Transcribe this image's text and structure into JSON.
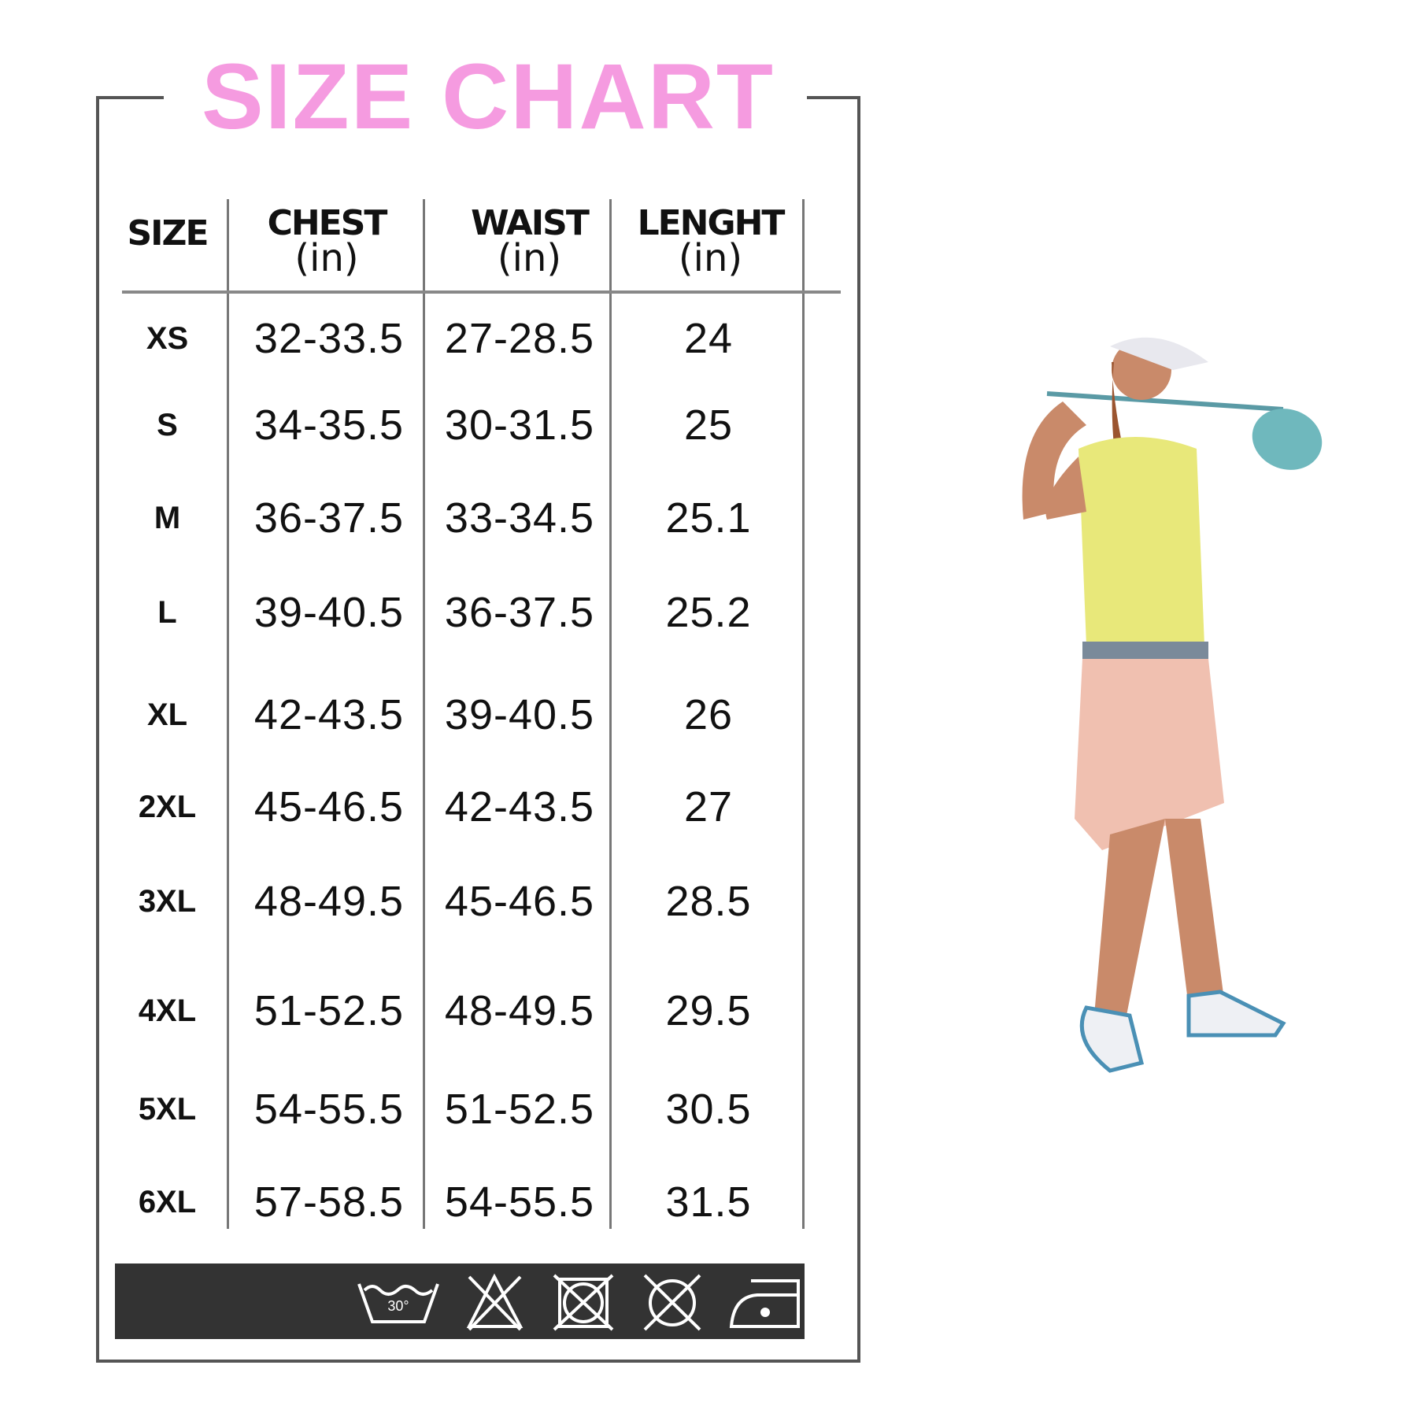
{
  "title": "SIZE CHART",
  "colors": {
    "title": "#f59be0",
    "frame": "#555555",
    "care_band": "#333333"
  },
  "table": {
    "headers": [
      {
        "label": "SIZE",
        "unit": ""
      },
      {
        "label": "CHEST",
        "unit": "(in)"
      },
      {
        "label": "WAIST",
        "unit": "(in)"
      },
      {
        "label": "LENGHT",
        "unit": "(in)"
      }
    ],
    "rows": [
      {
        "size": "XS",
        "chest": "32-33.5",
        "waist": "27-28.5",
        "length": "24"
      },
      {
        "size": "S",
        "chest": "34-35.5",
        "waist": "30-31.5",
        "length": "25"
      },
      {
        "size": "M",
        "chest": "36-37.5",
        "waist": "33-34.5",
        "length": "25.1"
      },
      {
        "size": "L",
        "chest": "39-40.5",
        "waist": "36-37.5",
        "length": "25.2"
      },
      {
        "size": "XL",
        "chest": "42-43.5",
        "waist": "39-40.5",
        "length": "26"
      },
      {
        "size": "2XL",
        "chest": "45-46.5",
        "waist": "42-43.5",
        "length": "27"
      },
      {
        "size": "3XL",
        "chest": "48-49.5",
        "waist": "45-46.5",
        "length": "28.5"
      },
      {
        "size": "4XL",
        "chest": "51-52.5",
        "waist": "48-49.5",
        "length": "29.5"
      },
      {
        "size": "5XL",
        "chest": "54-55.5",
        "waist": "51-52.5",
        "length": "30.5"
      },
      {
        "size": "6XL",
        "chest": "57-58.5",
        "waist": "54-55.5",
        "length": "31.5"
      }
    ]
  },
  "care_icons": [
    {
      "icon": "wash-30-icon",
      "label": "30°"
    },
    {
      "icon": "no-bleach-icon"
    },
    {
      "icon": "no-tumble-dry-icon"
    },
    {
      "icon": "no-dry-clean-icon"
    },
    {
      "icon": "iron-low-icon"
    }
  ]
}
